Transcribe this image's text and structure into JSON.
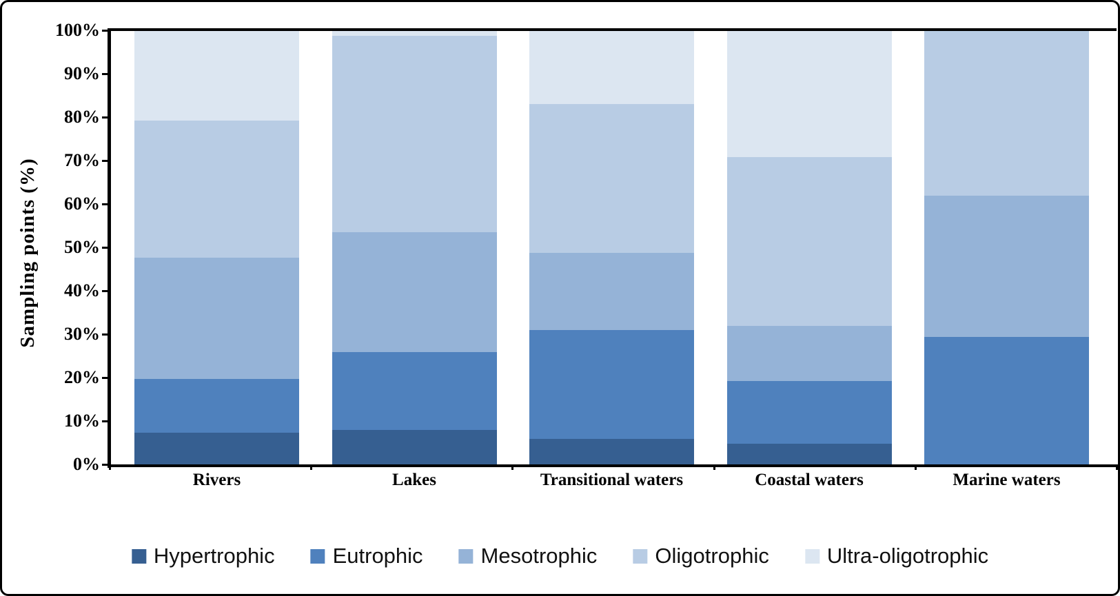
{
  "figure": {
    "y_axis_title": "Sampling points (%)"
  },
  "y_ticks": [
    "0%",
    "10%",
    "20%",
    "30%",
    "40%",
    "50%",
    "60%",
    "70%",
    "80%",
    "90%",
    "100%"
  ],
  "chart_data": {
    "type": "bar",
    "stacked": true,
    "percent_stacked": true,
    "title": "",
    "xlabel": "",
    "ylabel": "Sampling points (%)",
    "ylim": [
      0,
      100
    ],
    "grid": false,
    "legend_position": "bottom",
    "categories": [
      "Rivers",
      "Lakes",
      "Transitional waters",
      "Coastal waters",
      "Marine waters"
    ],
    "series": [
      {
        "name": "Hypertrophic",
        "color": "#365f91",
        "values": [
          7.3,
          8.0,
          5.8,
          4.8,
          0
        ]
      },
      {
        "name": "Eutrophic",
        "color": "#4f81bd",
        "values": [
          12.4,
          17.9,
          25.1,
          14.4,
          29.3
        ]
      },
      {
        "name": "Mesotrophic",
        "color": "#95b3d7",
        "values": [
          27.9,
          27.6,
          17.8,
          12.7,
          32.6
        ]
      },
      {
        "name": "Oligotrophic",
        "color": "#b8cce4",
        "values": [
          31.6,
          45.2,
          34.3,
          38.9,
          38.1
        ]
      },
      {
        "name": "Ultra-oligotrophic",
        "color": "#dce6f1",
        "values": [
          20.8,
          1.3,
          17.0,
          29.2,
          0
        ]
      }
    ]
  },
  "colors": {
    "axis": "#000000",
    "text": "#000000",
    "background": "#ffffff"
  }
}
